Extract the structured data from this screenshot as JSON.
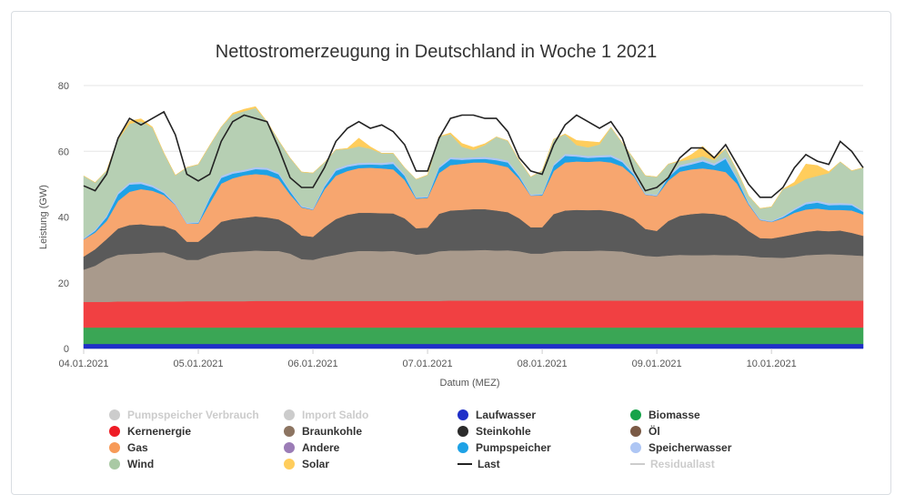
{
  "title": "Nettostromerzeugung in Deutschland in Woche 1 2021",
  "chart_data": {
    "type": "area",
    "stacked": true,
    "title": "Nettostromerzeugung in Deutschland in Woche 1 2021",
    "xlabel": "Datum (MEZ)",
    "ylabel": "Leistung (GW)",
    "ylim": [
      0,
      80
    ],
    "yticks": [
      0,
      20,
      40,
      60,
      80
    ],
    "xlim": [
      0,
      6.8
    ],
    "xticks": [
      {
        "x": 0,
        "label": "04.01.2021"
      },
      {
        "x": 1,
        "label": "05.01.2021"
      },
      {
        "x": 2,
        "label": "06.01.2021"
      },
      {
        "x": 3,
        "label": "07.01.2021"
      },
      {
        "x": 4,
        "label": "08.01.2021"
      },
      {
        "x": 5,
        "label": "09.01.2021"
      },
      {
        "x": 6,
        "label": "10.01.2021"
      }
    ],
    "x": [
      0,
      0.1,
      0.2,
      0.3,
      0.4,
      0.5,
      0.6,
      0.7,
      0.8,
      0.9,
      1.0,
      1.1,
      1.2,
      1.3,
      1.4,
      1.5,
      1.6,
      1.7,
      1.8,
      1.9,
      2.0,
      2.1,
      2.2,
      2.3,
      2.4,
      2.5,
      2.6,
      2.7,
      2.8,
      2.9,
      3.0,
      3.1,
      3.2,
      3.3,
      3.4,
      3.5,
      3.6,
      3.7,
      3.8,
      3.9,
      4.0,
      4.1,
      4.2,
      4.3,
      4.4,
      4.5,
      4.6,
      4.7,
      4.8,
      4.9,
      5.0,
      5.1,
      5.2,
      5.3,
      5.4,
      5.5,
      5.6,
      5.7,
      5.8,
      5.9,
      6.0,
      6.1,
      6.2,
      6.3,
      6.4,
      6.5,
      6.6,
      6.7,
      6.8
    ],
    "series": [
      {
        "name": "Laufwasser",
        "color": "#1f2fc8",
        "values": [
          1.4,
          1.4,
          1.4,
          1.4,
          1.4,
          1.4,
          1.4,
          1.4,
          1.4,
          1.4,
          1.4,
          1.4,
          1.4,
          1.4,
          1.4,
          1.4,
          1.4,
          1.4,
          1.4,
          1.4,
          1.4,
          1.4,
          1.4,
          1.4,
          1.4,
          1.4,
          1.4,
          1.4,
          1.4,
          1.4,
          1.4,
          1.4,
          1.4,
          1.4,
          1.4,
          1.4,
          1.4,
          1.4,
          1.4,
          1.4,
          1.4,
          1.4,
          1.4,
          1.4,
          1.4,
          1.4,
          1.4,
          1.4,
          1.4,
          1.4,
          1.4,
          1.4,
          1.4,
          1.4,
          1.4,
          1.4,
          1.4,
          1.4,
          1.4,
          1.4,
          1.4,
          1.4,
          1.4,
          1.4,
          1.4,
          1.4,
          1.4,
          1.4,
          1.4
        ]
      },
      {
        "name": "Biomasse",
        "color": "#3aa655",
        "values": [
          5,
          5,
          5,
          5,
          5,
          5,
          5,
          5,
          5,
          5,
          5,
          5,
          5,
          5,
          5,
          5,
          5,
          5,
          5,
          5,
          5,
          5,
          5,
          5,
          5,
          5,
          5,
          5,
          5,
          5,
          5,
          5,
          5,
          5,
          5,
          5,
          5,
          5,
          5,
          5,
          5,
          5,
          5,
          5,
          5,
          5,
          5,
          5,
          5,
          5,
          5,
          5,
          5,
          5,
          5,
          5,
          5,
          5,
          5,
          5,
          5,
          5,
          5,
          5,
          5,
          5,
          5,
          5,
          5
        ]
      },
      {
        "name": "Kernenergie",
        "color": "#f14042",
        "values": [
          7.8,
          7.8,
          7.8,
          7.9,
          7.9,
          7.9,
          7.9,
          7.9,
          7.9,
          8.0,
          8.0,
          8.0,
          8.0,
          8.0,
          8.0,
          8.1,
          8.1,
          8.1,
          8.1,
          8.1,
          8.1,
          8.1,
          8.1,
          8.1,
          8.1,
          8.1,
          8.1,
          8.1,
          8.1,
          8.1,
          8.1,
          8.1,
          8.2,
          8.2,
          8.2,
          8.2,
          8.2,
          8.2,
          8.2,
          8.2,
          8.2,
          8.2,
          8.2,
          8.2,
          8.2,
          8.2,
          8.2,
          8.2,
          8.2,
          8.2,
          8.2,
          8.2,
          8.2,
          8.2,
          8.2,
          8.2,
          8.2,
          8.2,
          8.2,
          8.2,
          8.2,
          8.2,
          8.2,
          8.2,
          8.2,
          8.2,
          8.2,
          8.2,
          8.2
        ]
      },
      {
        "name": "Braunkohle",
        "color": "#a99a8c",
        "values": [
          9.8,
          11,
          13.1,
          14.2,
          14.5,
          14.6,
          14.9,
          15.0,
          13.9,
          12.6,
          12.6,
          13.9,
          14.7,
          15.0,
          15.2,
          15.3,
          15.2,
          15.2,
          14.4,
          12.7,
          12.5,
          13.4,
          14.0,
          14.8,
          15.2,
          15.2,
          15.1,
          15.2,
          14.8,
          14.1,
          14.3,
          15.1,
          15.2,
          15.2,
          15.3,
          15.4,
          15.2,
          15.3,
          15.0,
          14.3,
          14.3,
          14.9,
          15.1,
          15.1,
          15.1,
          15.2,
          15.1,
          14.9,
          14.2,
          13.6,
          13.4,
          13.7,
          13.9,
          13.8,
          13.8,
          13.9,
          13.8,
          13.8,
          13.6,
          13.2,
          13.1,
          13.0,
          13.3,
          13.8,
          14.0,
          14.1,
          14.0,
          13.8,
          13.6
        ]
      },
      {
        "name": "Steinkohle",
        "color": "#5a5a5a",
        "values": [
          4.0,
          5.0,
          6.0,
          8.0,
          8.8,
          8.9,
          8.2,
          8.0,
          7.8,
          5.5,
          5.5,
          7.0,
          9.5,
          10.0,
          10.2,
          10.4,
          10.2,
          9.6,
          8.5,
          7.2,
          7.0,
          9.0,
          10.9,
          11.4,
          11.6,
          11.6,
          11.6,
          11.4,
          10.3,
          8.0,
          8.0,
          11.4,
          12.2,
          12.4,
          12.5,
          12.4,
          12.2,
          11.6,
          10.0,
          8.0,
          8.0,
          11.4,
          12.3,
          12.5,
          12.4,
          12.4,
          12.1,
          11.4,
          10.6,
          8.2,
          7.8,
          10.5,
          11.9,
          12.5,
          12.8,
          12.5,
          12.0,
          10.2,
          7.6,
          5.8,
          5.8,
          6.5,
          6.9,
          7.1,
          7.3,
          7.0,
          7.3,
          6.8,
          6.1
        ]
      },
      {
        "name": "Gas",
        "color": "#f7a66f",
        "values": [
          5.2,
          5.1,
          5.5,
          8.4,
          10.1,
          10.7,
          10.6,
          9.4,
          7.7,
          5.5,
          5.5,
          8.9,
          11.6,
          12.4,
          12.9,
          12.9,
          12.9,
          12.3,
          9.5,
          8.5,
          8.2,
          11.5,
          13.2,
          13.3,
          13.6,
          13.7,
          13.6,
          13.4,
          11.7,
          9.0,
          9.0,
          12.4,
          13.8,
          14.0,
          14.2,
          14.2,
          14.0,
          13.7,
          12.0,
          9.6,
          9.7,
          13.1,
          14.6,
          14.7,
          14.7,
          14.8,
          14.8,
          14.5,
          13.0,
          10.4,
          10.6,
          12.3,
          13.4,
          13.6,
          13.6,
          13.4,
          13.3,
          11.5,
          8.0,
          5.5,
          5.0,
          5.5,
          6.5,
          6.8,
          6.7,
          6.5,
          6.3,
          6.8,
          6.5
        ]
      },
      {
        "name": "Pumpspeicher",
        "color": "#1ea2e6",
        "values": [
          0.1,
          0.5,
          1.2,
          2.0,
          2.2,
          1.6,
          1.1,
          0.6,
          0.1,
          0,
          0.2,
          1.5,
          1.7,
          1.4,
          1.1,
          1.5,
          1.6,
          1.4,
          0.9,
          0.2,
          0.1,
          0.8,
          1.5,
          1.3,
          1.0,
          1.0,
          1.1,
          1.7,
          1.2,
          0.2,
          0.2,
          1.5,
          1.8,
          1.2,
          1.0,
          1.1,
          1.3,
          1.4,
          0.7,
          0.1,
          0.2,
          1.6,
          2.0,
          1.5,
          1.2,
          1.2,
          1.7,
          1.3,
          0.5,
          0.1,
          0.1,
          1.0,
          1.4,
          1.5,
          2.1,
          1.3,
          4.0,
          1.5,
          0.3,
          0.1,
          0.1,
          0.4,
          0.8,
          1.6,
          1.8,
          1.4,
          1.5,
          1.6,
          0.8
        ]
      },
      {
        "name": "Speicherwasser",
        "color": "#aec6f4",
        "values": [
          0.3,
          0.4,
          0.5,
          0.6,
          0.6,
          0.6,
          0.6,
          0.5,
          0.4,
          0.3,
          0.3,
          0.5,
          0.6,
          0.6,
          0.6,
          0.6,
          0.6,
          0.5,
          0.4,
          0.3,
          0.3,
          0.5,
          0.6,
          0.6,
          0.6,
          0.6,
          0.6,
          0.6,
          0.5,
          0.3,
          0.3,
          0.5,
          0.6,
          0.6,
          0.6,
          0.6,
          0.6,
          0.6,
          0.5,
          0.3,
          0.3,
          0.5,
          0.6,
          0.6,
          0.6,
          0.6,
          0.6,
          0.6,
          0.5,
          0.3,
          0.3,
          0.5,
          0.6,
          0.6,
          0.6,
          0.6,
          0.6,
          0.5,
          0.4,
          0.3,
          0.3,
          0.4,
          0.5,
          0.6,
          0.6,
          0.6,
          0.6,
          0.5,
          0.4
        ]
      },
      {
        "name": "Wind",
        "color": "#b6cfb3",
        "values": [
          18.9,
          14.3,
          13.6,
          16.1,
          17.9,
          18.4,
          17.5,
          11.7,
          8.5,
          16.8,
          17.5,
          15.6,
          14.9,
          17.4,
          17.8,
          18.0,
          14.0,
          9.8,
          9.8,
          10.3,
          10.8,
          6.9,
          5.8,
          4.8,
          5.0,
          4.2,
          2.9,
          2.6,
          2.0,
          5.4,
          6.5,
          9.1,
          7.0,
          3.4,
          2.2,
          3.6,
          6.5,
          6.0,
          4.4,
          5.3,
          7.0,
          7.6,
          5.9,
          2.9,
          2.6,
          3.3,
          8.4,
          5.2,
          4.3,
          5.4,
          5.4,
          3.5,
          1.2,
          1.0,
          1.0,
          1.0,
          2.5,
          2.0,
          2.0,
          3.1,
          4.2,
          8.1,
          7.0,
          7.1,
          7.5,
          9.2,
          12.5,
          10.0,
          13.0
        ]
      },
      {
        "name": "Solar",
        "color": "#ffcd5c",
        "values": [
          0,
          0,
          0,
          0.4,
          0.8,
          0.8,
          0.2,
          0,
          0,
          0,
          0,
          0,
          0,
          0.4,
          0.6,
          0.4,
          0,
          0,
          0,
          0,
          0,
          0,
          0,
          0.2,
          2.5,
          0.6,
          0,
          0,
          0,
          0,
          0,
          0,
          0.4,
          1.0,
          0.8,
          0.4,
          0,
          0,
          0,
          0,
          0,
          0,
          0.2,
          1.4,
          1.8,
          0.6,
          0,
          0,
          0,
          0,
          0,
          0,
          0.2,
          1.4,
          3.0,
          1.0,
          0,
          0,
          0,
          0,
          0,
          0,
          1.0,
          4.5,
          3.2,
          0.4,
          0,
          0,
          0
        ]
      }
    ],
    "line": {
      "name": "Last",
      "color": "#222222",
      "values": [
        49.5,
        48,
        53,
        64,
        70,
        68,
        70,
        72,
        65,
        53,
        51,
        53,
        63,
        69,
        71,
        70,
        69,
        61,
        52,
        49,
        49,
        55,
        63,
        67,
        69,
        67,
        68,
        66,
        62,
        54,
        54,
        64,
        70,
        71,
        71,
        70,
        70,
        66,
        58,
        54,
        53,
        62,
        68,
        71,
        69,
        67,
        69,
        64,
        54,
        48,
        49,
        52,
        58,
        61,
        61,
        58,
        62,
        56,
        50,
        46,
        46,
        49,
        55,
        59,
        57,
        56,
        63,
        60,
        55
      ]
    },
    "legend": [
      {
        "label": "Pumpspeicher Verbrauch",
        "color": "#cccccc",
        "hidden": true,
        "symbol": "dot"
      },
      {
        "label": "Import Saldo",
        "color": "#cccccc",
        "hidden": true,
        "symbol": "dot"
      },
      {
        "label": "Laufwasser",
        "color": "#1f2fc8",
        "hidden": false,
        "symbol": "dot"
      },
      {
        "label": "Biomasse",
        "color": "#17a34a",
        "hidden": false,
        "symbol": "dot"
      },
      {
        "label": "Kernenergie",
        "color": "#ee1c25",
        "hidden": false,
        "symbol": "dot"
      },
      {
        "label": "Braunkohle",
        "color": "#8c7461",
        "hidden": false,
        "symbol": "dot"
      },
      {
        "label": "Steinkohle",
        "color": "#2b2b2b",
        "hidden": false,
        "symbol": "dot"
      },
      {
        "label": "Öl",
        "color": "#7a5a45",
        "hidden": false,
        "symbol": "dot"
      },
      {
        "label": "Gas",
        "color": "#f79a58",
        "hidden": false,
        "symbol": "dot"
      },
      {
        "label": "Andere",
        "color": "#9b7cb6",
        "hidden": false,
        "symbol": "dot"
      },
      {
        "label": "Pumpspeicher",
        "color": "#1ea2e6",
        "hidden": false,
        "symbol": "dot"
      },
      {
        "label": "Speicherwasser",
        "color": "#aec6f4",
        "hidden": false,
        "symbol": "dot"
      },
      {
        "label": "Wind",
        "color": "#a9c9a4",
        "hidden": false,
        "symbol": "dot"
      },
      {
        "label": "Solar",
        "color": "#ffcd5c",
        "hidden": false,
        "symbol": "dot"
      },
      {
        "label": "Last",
        "color": "#222222",
        "hidden": false,
        "symbol": "line"
      },
      {
        "label": "Residuallast",
        "color": "#cccccc",
        "hidden": true,
        "symbol": "line"
      }
    ]
  }
}
